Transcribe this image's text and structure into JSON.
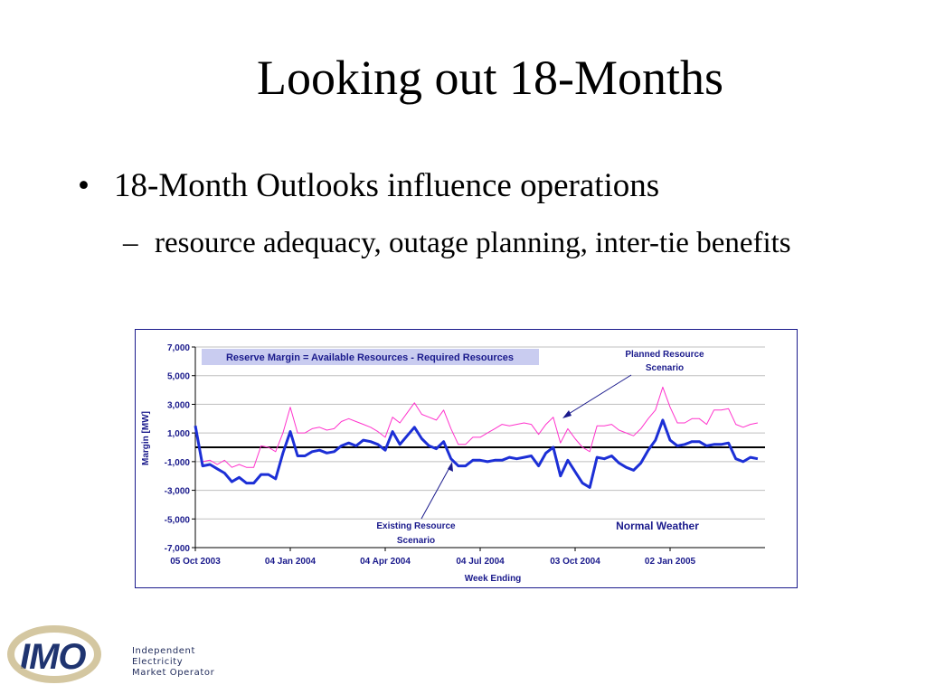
{
  "slide": {
    "title": "Looking out 18-Months",
    "bullet": "18-Month Outlooks influence operations",
    "sub_bullet": "resource adequacy, outage planning, inter-tie benefits",
    "dash": "–",
    "bullet_mark": "•"
  },
  "logo": {
    "mark": "IMO",
    "line1": "Independent",
    "line2": "Electricity",
    "line3": "Market Operator"
  },
  "chart_data": {
    "type": "line",
    "title": "Reserve Margin = Available Resources - Required Resources",
    "xlabel": "Week Ending",
    "ylabel": "Margin [MW]",
    "ylim": [
      -7000,
      7000
    ],
    "yticks": [
      7000,
      5000,
      3000,
      1000,
      -1000,
      -3000,
      -5000,
      -7000
    ],
    "ytick_labels": [
      "7,000",
      "5,000",
      "3,000",
      "1,000",
      "-1,000",
      "-3,000",
      "-5,000",
      "-7,000"
    ],
    "xtick_labels": [
      "05 Oct 2003",
      "04 Jan 2004",
      "04 Apr 2004",
      "04 Jul 2004",
      "03 Oct 2004",
      "02 Jan 2005"
    ],
    "grid": true,
    "annotations": {
      "planned": [
        "Planned Resource",
        "Scenario"
      ],
      "existing": [
        "Existing  Resource",
        "Scenario"
      ],
      "weather": "Normal Weather"
    },
    "colors": {
      "planned": "#ff33cc",
      "existing": "#1c2fd6",
      "axis_text": "#1a1a8c",
      "title_bg": "#c9ccf0"
    },
    "series": [
      {
        "name": "Planned Resource Scenario",
        "values": [
          1200,
          -1000,
          -900,
          -1200,
          -900,
          -1400,
          -1200,
          -1400,
          -1400,
          100,
          0,
          -300,
          1000,
          2800,
          1000,
          1000,
          1300,
          1400,
          1200,
          1300,
          1800,
          2000,
          1800,
          1600,
          1400,
          1100,
          700,
          2100,
          1700,
          2400,
          3100,
          2300,
          2100,
          1900,
          2600,
          1300,
          200,
          200,
          700,
          700,
          1000,
          1300,
          1600,
          1500,
          1600,
          1700,
          1600,
          900,
          1600,
          2100,
          300,
          1300,
          600,
          0,
          -300,
          1500,
          1500,
          1600,
          1200,
          1000,
          800,
          1300,
          2000,
          2600,
          4200,
          2800,
          1700,
          1700,
          2000,
          2000,
          1600,
          2600,
          2600,
          2700,
          1600,
          1400,
          1600,
          1700
        ]
      },
      {
        "name": "Existing Resource Scenario",
        "values": [
          1500,
          -1300,
          -1200,
          -1500,
          -1800,
          -2400,
          -2100,
          -2500,
          -2500,
          -1900,
          -1900,
          -2200,
          -400,
          1100,
          -600,
          -600,
          -300,
          -200,
          -400,
          -300,
          100,
          300,
          100,
          500,
          400,
          200,
          -200,
          1100,
          200,
          800,
          1400,
          600,
          100,
          -100,
          400,
          -800,
          -1300,
          -1300,
          -900,
          -900,
          -1000,
          -900,
          -900,
          -700,
          -800,
          -700,
          -600,
          -1300,
          -400,
          0,
          -2000,
          -900,
          -1700,
          -2500,
          -2800,
          -700,
          -800,
          -600,
          -1100,
          -1400,
          -1600,
          -1100,
          -200,
          500,
          1900,
          500,
          100,
          200,
          400,
          400,
          100,
          200,
          200,
          300,
          -800,
          -1000,
          -700,
          -800
        ]
      }
    ]
  }
}
